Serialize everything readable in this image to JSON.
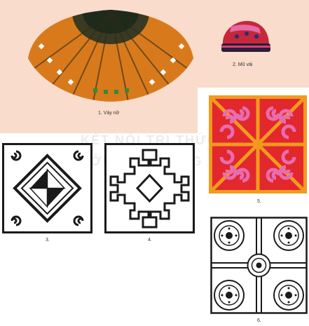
{
  "figures": {
    "skirt": {
      "caption": "1. Váy nữ"
    },
    "hat": {
      "caption": "2. Mũ vải"
    },
    "pattern3": {
      "caption": "3."
    },
    "pattern4": {
      "caption": "4."
    },
    "pattern5": {
      "caption": "5."
    },
    "pattern6": {
      "caption": "6."
    }
  },
  "watermark": {
    "line1": "KẾT NỐI TRI THỨC",
    "line2": "VỚI CUỘC SỐNG"
  },
  "colors": {
    "panel_bg": "#f9dccb",
    "orange": "#f39a1e",
    "red": "#e2272d",
    "pink": "#e86db0",
    "ink": "#1a1a1a"
  }
}
